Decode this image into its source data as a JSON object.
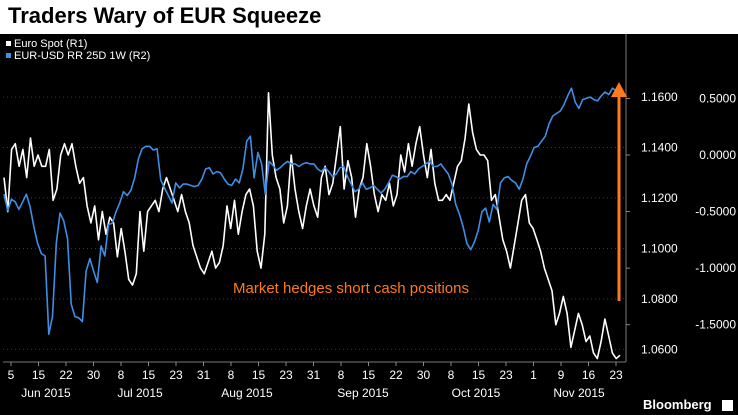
{
  "title": "Traders Wary of EUR Squeeze",
  "brand": "Bloomberg",
  "annotation": "Market hedges short cash positions",
  "colors": {
    "background": "#000000",
    "euro_spot": "#ffffff",
    "risk_reversal": "#3d8fe6",
    "annotation": "#ff7a1a"
  },
  "chart_data": {
    "type": "line",
    "title": "Traders Wary of EUR Squeeze",
    "legend_placement": "top-left",
    "grid": true,
    "x_ticks": [
      "5",
      "15",
      "22",
      "30",
      "8",
      "15",
      "23",
      "31",
      "8",
      "15",
      "23",
      "31",
      "8",
      "15",
      "22",
      "30",
      "8",
      "15",
      "23",
      "1",
      "9",
      "16",
      "23"
    ],
    "month_labels": [
      "Jun 2015",
      "Jul 2015",
      "Aug 2015",
      "Sep 2015",
      "Oct 2015",
      "Nov 2015"
    ],
    "y_left_ticks": [
      "1.1600",
      "1.1400",
      "1.1200",
      "1.1000",
      "1.0800",
      "1.0600"
    ],
    "y_left_range": [
      1.055,
      1.185
    ],
    "y_right_ticks": [
      "0.5000",
      "0.0000",
      "-0.5000",
      "-1.0000",
      "-1.5000"
    ],
    "y_right_range": [
      -1.83,
      1.07
    ],
    "series": [
      {
        "name": "Euro Spot  (R1)",
        "axis": "right",
        "values": [
          -0.2,
          -0.5,
          0.05,
          0.1,
          -0.1,
          0.05,
          -0.2,
          0.15,
          -0.1,
          0.0,
          -0.1,
          -0.1,
          0.05,
          -0.4,
          -0.3,
          0.0,
          0.1,
          0.0,
          0.1,
          -0.1,
          -0.25,
          -0.2,
          -0.45,
          -0.6,
          -0.45,
          -0.75,
          -0.5,
          -0.7,
          -0.55,
          -0.6,
          -0.9,
          -0.65,
          -0.85,
          -1.1,
          -1.15,
          -1.05,
          -0.5,
          -0.85,
          -0.5,
          -0.45,
          -0.4,
          -0.5,
          -0.3,
          -0.2,
          -0.3,
          -0.4,
          -0.5,
          -0.35,
          -0.5,
          -0.6,
          -0.8,
          -0.9,
          -1.0,
          -1.05,
          -0.95,
          -0.85,
          -1.0,
          -0.95,
          -0.8,
          -0.45,
          -0.65,
          -0.4,
          -0.7,
          -0.5,
          -0.35,
          -0.3,
          -0.45,
          -0.85,
          -1.0,
          -0.7,
          0.55,
          0.0,
          -0.2,
          -0.3,
          -0.6,
          -0.45,
          0.0,
          -0.3,
          -0.5,
          -0.65,
          -0.45,
          -0.3,
          -0.45,
          -0.55,
          -0.2,
          -0.1,
          -0.35,
          -0.25,
          0.0,
          0.25,
          -0.3,
          -0.05,
          -0.2,
          -0.55,
          -0.3,
          -0.2,
          0.1,
          -0.1,
          -0.35,
          -0.5,
          -0.35,
          -0.4,
          -0.25,
          -0.45,
          -0.35,
          0.0,
          -0.15,
          0.1,
          -0.1,
          0.1,
          0.25,
          0.0,
          -0.2,
          0.05,
          -0.25,
          -0.4,
          -0.4,
          -0.35,
          -0.4,
          -0.25,
          -0.1,
          -0.05,
          0.15,
          0.45,
          0.2,
          0.05,
          0.0,
          0.0,
          -0.05,
          -0.4,
          -0.35,
          -0.55,
          -0.75,
          -0.85,
          -1.0,
          -0.8,
          -0.6,
          -0.4,
          -0.35,
          -0.6,
          -0.65,
          -0.75,
          -0.85,
          -1.0,
          -1.1,
          -1.2,
          -1.5,
          -1.4,
          -1.25,
          -1.4,
          -1.7,
          -1.55,
          -1.4,
          -1.5,
          -1.65,
          -1.6,
          -1.75,
          -1.8,
          -1.65,
          -1.45,
          -1.6,
          -1.75,
          -1.8,
          -1.77
        ]
      },
      {
        "name": "EUR-USD RR 25D 1W  (R2)",
        "axis": "left",
        "values": [
          1.1215,
          1.115,
          1.1195,
          1.1185,
          1.1155,
          1.1185,
          1.1215,
          1.1165,
          1.1085,
          1.102,
          1.098,
          1.097,
          1.066,
          1.073,
          1.102,
          1.114,
          1.111,
          1.104,
          1.078,
          1.073,
          1.0725,
          1.071,
          1.091,
          1.096,
          1.091,
          1.0865,
          1.101,
          1.097,
          1.1095,
          1.11,
          1.1145,
          1.118,
          1.1225,
          1.121,
          1.123,
          1.128,
          1.1355,
          1.1395,
          1.1405,
          1.1405,
          1.139,
          1.1395,
          1.127,
          1.124,
          1.121,
          1.118,
          1.126,
          1.124,
          1.1255,
          1.1255,
          1.125,
          1.1245,
          1.125,
          1.1275,
          1.1315,
          1.132,
          1.1295,
          1.1305,
          1.13,
          1.1275,
          1.1255,
          1.125,
          1.1275,
          1.126,
          1.1315,
          1.1425,
          1.1445,
          1.128,
          1.138,
          1.1335,
          1.1215,
          1.1345,
          1.133,
          1.131,
          1.132,
          1.1335,
          1.1345,
          1.1335,
          1.1335,
          1.1325,
          1.1335,
          1.134,
          1.1335,
          1.1335,
          1.1315,
          1.1305,
          1.132,
          1.1305,
          1.1285,
          1.1295,
          1.132,
          1.1325,
          1.1285,
          1.1255,
          1.1225,
          1.1235,
          1.126,
          1.1235,
          1.124,
          1.125,
          1.1235,
          1.122,
          1.1235,
          1.126,
          1.129,
          1.1285,
          1.1275,
          1.1285,
          1.1285,
          1.1305,
          1.1295,
          1.1315,
          1.1325,
          1.1335,
          1.1345,
          1.1325,
          1.1325,
          1.1335,
          1.1315,
          1.1295,
          1.1255,
          1.1175,
          1.1135,
          1.1085,
          1.102,
          1.0995,
          1.1025,
          1.107,
          1.1145,
          1.116,
          1.1105,
          1.1175,
          1.1155,
          1.126,
          1.128,
          1.1285,
          1.127,
          1.126,
          1.1235,
          1.1275,
          1.1335,
          1.1365,
          1.14,
          1.1405,
          1.1425,
          1.1445,
          1.1495,
          1.1525,
          1.1535,
          1.1545,
          1.157,
          1.1605,
          1.1635,
          1.158,
          1.1555,
          1.159,
          1.1595,
          1.16,
          1.159,
          1.1585,
          1.1605,
          1.162,
          1.161,
          1.1635,
          1.1625,
          1.1615
        ]
      }
    ]
  }
}
